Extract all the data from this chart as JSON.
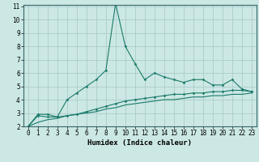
{
  "xlabel": "Humidex (Indice chaleur)",
  "x_values": [
    0,
    1,
    2,
    3,
    4,
    5,
    6,
    7,
    8,
    9,
    10,
    11,
    12,
    13,
    14,
    15,
    16,
    17,
    18,
    19,
    20,
    21,
    22,
    23
  ],
  "line1_y": [
    2.0,
    2.9,
    2.9,
    2.7,
    4.0,
    4.5,
    5.0,
    5.5,
    6.2,
    11.2,
    8.0,
    6.7,
    5.5,
    6.0,
    5.7,
    5.5,
    5.3,
    5.5,
    5.5,
    5.1,
    5.1,
    5.5,
    4.8,
    4.6
  ],
  "line2_y": [
    2.0,
    2.8,
    2.7,
    2.7,
    2.8,
    2.9,
    3.1,
    3.3,
    3.5,
    3.7,
    3.9,
    4.0,
    4.1,
    4.2,
    4.3,
    4.4,
    4.4,
    4.5,
    4.5,
    4.6,
    4.6,
    4.7,
    4.7,
    4.6
  ],
  "line3_y": [
    2.0,
    2.3,
    2.5,
    2.6,
    2.8,
    2.9,
    3.0,
    3.1,
    3.3,
    3.4,
    3.6,
    3.7,
    3.8,
    3.9,
    4.0,
    4.0,
    4.1,
    4.2,
    4.2,
    4.3,
    4.3,
    4.4,
    4.4,
    4.5
  ],
  "line_color": "#1a7a6a",
  "bg_color": "#cce8e4",
  "grid_color": "#aacccc",
  "ylim": [
    2,
    11
  ],
  "yticks": [
    2,
    3,
    4,
    5,
    6,
    7,
    8,
    9,
    10,
    11
  ],
  "xlim": [
    -0.5,
    23.5
  ],
  "tick_fontsize": 5.5,
  "xlabel_fontsize": 6.5
}
